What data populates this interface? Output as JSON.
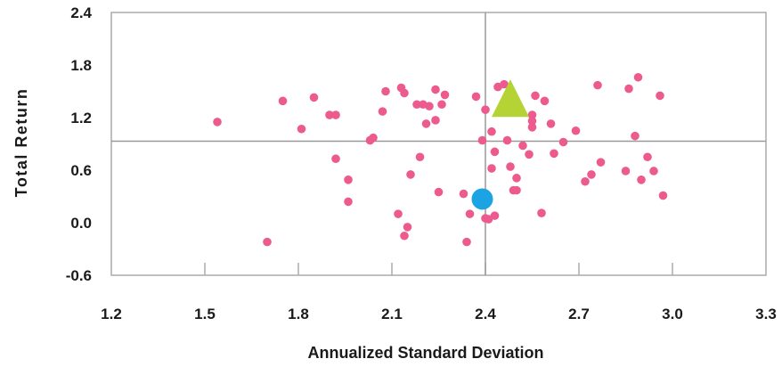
{
  "chart_data": {
    "type": "scatter",
    "title": "",
    "xlabel": "Annualized Standard Deviation",
    "ylabel": "Total Return",
    "xlim": [
      1.2,
      3.3
    ],
    "ylim": [
      -0.6,
      2.4
    ],
    "x_ticks": [
      "1.2",
      "1.5",
      "1.8",
      "2.1",
      "2.4",
      "2.7",
      "3.0",
      "3.3"
    ],
    "x_tick_values": [
      1.2,
      1.5,
      1.8,
      2.1,
      2.4,
      2.7,
      3.0,
      3.3
    ],
    "y_ticks": [
      "2.4",
      "1.8",
      "1.2",
      "0.6",
      "0.0",
      "-0.6"
    ],
    "y_tick_values": [
      2.4,
      1.8,
      1.2,
      0.6,
      0.0,
      -0.6
    ],
    "grid": false,
    "reference_lines": {
      "x": 2.4,
      "y": 0.93
    },
    "colors": {
      "points": "#ec5a8e",
      "circle_marker": "#1ba3e3",
      "triangle_marker": "#b5d334",
      "reference_line": "#999999",
      "frame": "#aaaaaa"
    },
    "series": [
      {
        "marker": "dot",
        "points": [
          [
            1.54,
            1.15
          ],
          [
            1.7,
            -0.22
          ],
          [
            1.75,
            1.39
          ],
          [
            1.81,
            1.07
          ],
          [
            1.85,
            1.43
          ],
          [
            1.9,
            1.23
          ],
          [
            1.92,
            1.23
          ],
          [
            1.92,
            0.73
          ],
          [
            1.96,
            0.49
          ],
          [
            1.96,
            0.24
          ],
          [
            2.03,
            0.94
          ],
          [
            2.04,
            0.97
          ],
          [
            2.07,
            1.27
          ],
          [
            2.08,
            1.5
          ],
          [
            2.12,
            0.1
          ],
          [
            2.13,
            1.54
          ],
          [
            2.14,
            1.48
          ],
          [
            2.14,
            -0.15
          ],
          [
            2.15,
            -0.05
          ],
          [
            2.16,
            0.55
          ],
          [
            2.18,
            1.35
          ],
          [
            2.19,
            0.75
          ],
          [
            2.2,
            1.35
          ],
          [
            2.21,
            1.13
          ],
          [
            2.22,
            1.33
          ],
          [
            2.24,
            1.52
          ],
          [
            2.24,
            1.17
          ],
          [
            2.25,
            0.35
          ],
          [
            2.26,
            1.35
          ],
          [
            2.27,
            1.46
          ],
          [
            2.33,
            0.33
          ],
          [
            2.34,
            -0.22
          ],
          [
            2.35,
            0.1
          ],
          [
            2.37,
            1.44
          ],
          [
            2.39,
            0.94
          ],
          [
            2.4,
            1.29
          ],
          [
            2.4,
            0.05
          ],
          [
            2.41,
            0.04
          ],
          [
            2.42,
            1.04
          ],
          [
            2.42,
            0.62
          ],
          [
            2.43,
            0.81
          ],
          [
            2.43,
            0.08
          ],
          [
            2.44,
            1.55
          ],
          [
            2.46,
            1.58
          ],
          [
            2.47,
            0.94
          ],
          [
            2.48,
            0.64
          ],
          [
            2.49,
            0.37
          ],
          [
            2.5,
            0.37
          ],
          [
            2.5,
            0.51
          ],
          [
            2.52,
            0.88
          ],
          [
            2.54,
            0.78
          ],
          [
            2.55,
            1.23
          ],
          [
            2.55,
            1.16
          ],
          [
            2.55,
            1.09
          ],
          [
            2.56,
            1.45
          ],
          [
            2.58,
            0.11
          ],
          [
            2.59,
            1.39
          ],
          [
            2.61,
            1.13
          ],
          [
            2.62,
            0.79
          ],
          [
            2.65,
            0.92
          ],
          [
            2.69,
            1.05
          ],
          [
            2.72,
            0.47
          ],
          [
            2.74,
            0.55
          ],
          [
            2.76,
            1.57
          ],
          [
            2.77,
            0.69
          ],
          [
            2.85,
            0.59
          ],
          [
            2.86,
            1.53
          ],
          [
            2.88,
            0.99
          ],
          [
            2.89,
            1.66
          ],
          [
            2.9,
            0.49
          ],
          [
            2.92,
            0.75
          ],
          [
            2.94,
            0.59
          ],
          [
            2.96,
            1.45
          ],
          [
            2.97,
            0.31
          ]
        ]
      },
      {
        "marker": "circle",
        "points": [
          [
            2.39,
            0.27
          ]
        ]
      },
      {
        "marker": "triangle",
        "points": [
          [
            2.48,
            1.4
          ]
        ]
      }
    ]
  }
}
